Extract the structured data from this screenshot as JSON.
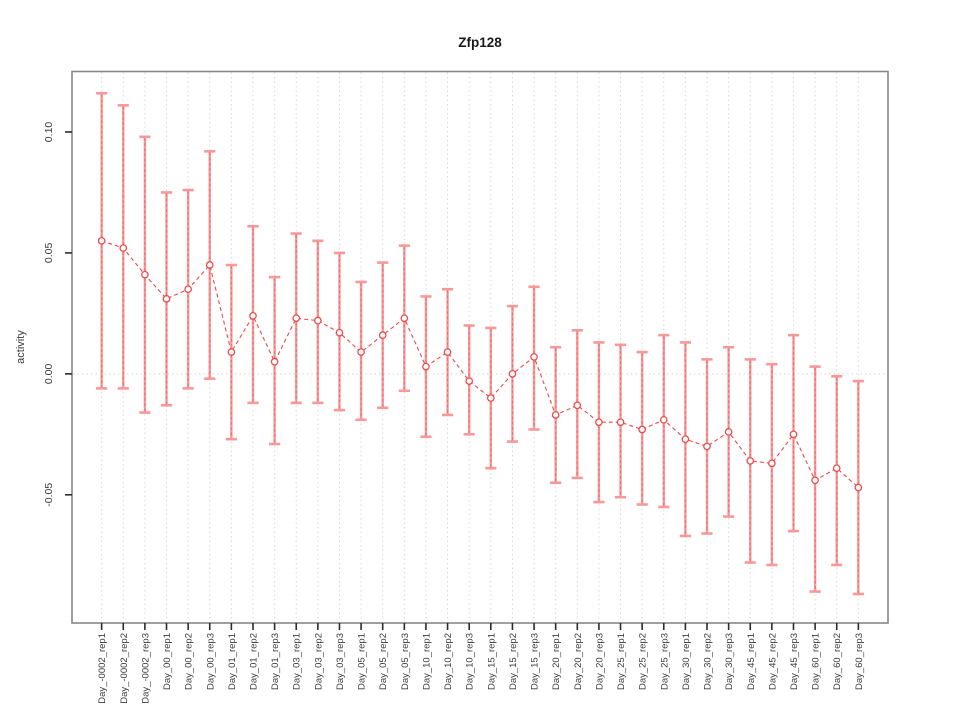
{
  "title": "Zfp128",
  "ylabel": "activity",
  "xlabel": "",
  "chart_data": {
    "type": "scatter",
    "subtype": "points-with-error-bars-and-dashed-connecting-line",
    "title": "Zfp128",
    "ylabel": "activity",
    "xlabel": "",
    "ylim": [
      -0.103,
      0.125
    ],
    "grid": "vertical-dotted-gridline-per-category",
    "zero_reference_line": true,
    "legend_position": "none",
    "yticks": [
      "0.10",
      "0.05",
      "0.00",
      "-0.05"
    ],
    "ytick_values": [
      0.1,
      0.05,
      0.0,
      -0.05
    ],
    "categories": [
      "Day_-0002_rep1",
      "Day_-0002_rep2",
      "Day_-0002_rep3",
      "Day_00_rep1",
      "Day_00_rep2",
      "Day_00_rep3",
      "Day_01_rep1",
      "Day_01_rep2",
      "Day_01_rep3",
      "Day_03_rep1",
      "Day_03_rep2",
      "Day_03_rep3",
      "Day_05_rep1",
      "Day_05_rep2",
      "Day_05_rep3",
      "Day_10_rep1",
      "Day_10_rep2",
      "Day_10_rep3",
      "Day_15_rep1",
      "Day_15_rep2",
      "Day_15_rep3",
      "Day_20_rep1",
      "Day_20_rep2",
      "Day_20_rep3",
      "Day_25_rep1",
      "Day_25_rep2",
      "Day_25_rep3",
      "Day_30_rep1",
      "Day_30_rep2",
      "Day_30_rep3",
      "Day_45_rep1",
      "Day_45_rep2",
      "Day_45_rep3",
      "Day_60_rep1",
      "Day_60_rep2",
      "Day_60_rep3"
    ],
    "values": [
      0.055,
      0.052,
      0.041,
      0.031,
      0.035,
      0.045,
      0.009,
      0.024,
      0.005,
      0.023,
      0.022,
      0.017,
      0.009,
      0.016,
      0.023,
      0.003,
      0.009,
      -0.003,
      -0.01,
      0.0,
      0.007,
      -0.017,
      -0.013,
      -0.02,
      -0.02,
      -0.023,
      -0.019,
      -0.027,
      -0.03,
      -0.024,
      -0.036,
      -0.037,
      -0.025,
      -0.044,
      -0.039,
      -0.047
    ],
    "error_high": [
      0.116,
      0.111,
      0.098,
      0.075,
      0.076,
      0.092,
      0.045,
      0.061,
      0.04,
      0.058,
      0.055,
      0.05,
      0.038,
      0.046,
      0.053,
      0.032,
      0.035,
      0.02,
      0.019,
      0.028,
      0.036,
      0.011,
      0.018,
      0.013,
      0.012,
      0.009,
      0.016,
      0.013,
      0.006,
      0.011,
      0.006,
      0.004,
      0.016,
      0.003,
      -0.001,
      -0.003
    ],
    "error_low": [
      -0.006,
      -0.006,
      -0.016,
      -0.013,
      -0.006,
      -0.002,
      -0.027,
      -0.012,
      -0.029,
      -0.012,
      -0.012,
      -0.015,
      -0.019,
      -0.014,
      -0.007,
      -0.026,
      -0.017,
      -0.025,
      -0.039,
      -0.028,
      -0.023,
      -0.045,
      -0.043,
      -0.053,
      -0.051,
      -0.054,
      -0.055,
      -0.067,
      -0.066,
      -0.059,
      -0.078,
      -0.079,
      -0.065,
      -0.09,
      -0.079,
      -0.091
    ],
    "colors": {
      "point": "#ed4a4a",
      "series_line": "#ed4a4a",
      "error_bar": "#f89898",
      "error_bar_core": "#ef6363",
      "gridline": "#d8d8d8",
      "zero_line": "#dedede",
      "box_border": "#878787",
      "tick": "#2b2b2b",
      "text": "#3c3c3c",
      "title": "#1a1a1a"
    }
  }
}
